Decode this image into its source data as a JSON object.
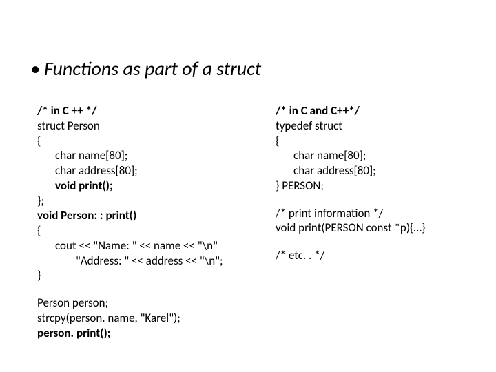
{
  "title": "Functions as part of a struct",
  "left": {
    "l1": "/* in C ++ */",
    "l2": "struct Person",
    "l3": "{",
    "l4": "char name[80];",
    "l5": "char address[80];",
    "l6": "void print();",
    "l7": "};",
    "l8": "void Person: : print()",
    "l9": "{",
    "l10": "cout << \"Name: \" << name << \"\\n\"",
    "l11": "\"Address:   \" << address << \"\\n\";",
    "l12": "}",
    "l13": "Person person;",
    "l14": "strcpy(person. name, \"Karel\");",
    "l15": "person. print();"
  },
  "right": {
    "r1": "/* in C  and C++*/",
    "r2": "typedef struct",
    "r3": "{",
    "r4": "char name[80];",
    "r5": "char address[80];",
    "r6": "} PERSON;",
    "r7": "/* print information   */",
    "r8": "void print(PERSON const *p){…}",
    "r9": "/* etc. .   */"
  }
}
